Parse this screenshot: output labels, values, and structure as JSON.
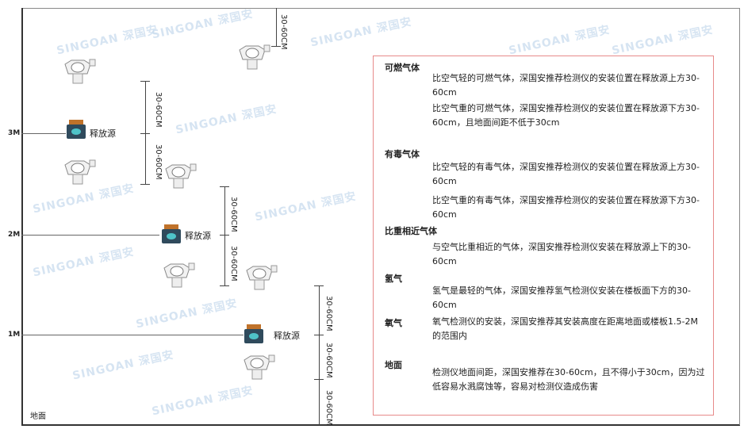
{
  "watermark": "SINGOAN 深国安",
  "levels": {
    "l3": "3M",
    "l2": "2M",
    "l1": "1M",
    "ground": "地面"
  },
  "dimension_label": "30-60CM",
  "source_label": "释放源",
  "info": {
    "combustible": {
      "title": "可燃气体",
      "p1": "比空气轻的可燃气体，深国安推荐检测仪的安装位置在释放源上方30-60cm",
      "p2": "比空气重的可燃气体，深国安推荐检测仪的安装位置在释放源下方30-60cm，且地面间距不低于30cm"
    },
    "toxic": {
      "title": "有毒气体",
      "p1": "比空气轻的有毒气体，深国安推荐检测仪的安装位置在释放源上方30-60cm",
      "p2": "比空气重的有毒气体，深国安推荐检测仪的安装位置在释放源下方30-60cm"
    },
    "similar": {
      "title": "比重相近气体",
      "p1": "与空气比重相近的气体，深国安推荐检测仪安装在释放源上下的30-60cm"
    },
    "hydrogen": {
      "title": "氢气",
      "p1": "氢气是最轻的气体，深国安推荐氢气检测仪安装在楼板面下方的30-60cm"
    },
    "oxygen": {
      "title": "氧气",
      "p1": "氧气检测仪的安装，深国安推荐其安装高度在距离地面或楼板1.5-2M的范围内"
    },
    "ground": {
      "title": "地面",
      "p1": "检测仪地面间距，深国安推荐在30-60cm，且不得小于30cm，因为过低容易水溅腐蚀等，容易对检测仪造成伤害"
    }
  },
  "colors": {
    "box_border": "#e78a8a",
    "source_body": "#2f4a5c",
    "source_cap": "#c0722a",
    "source_face": "#4fc3c8"
  }
}
